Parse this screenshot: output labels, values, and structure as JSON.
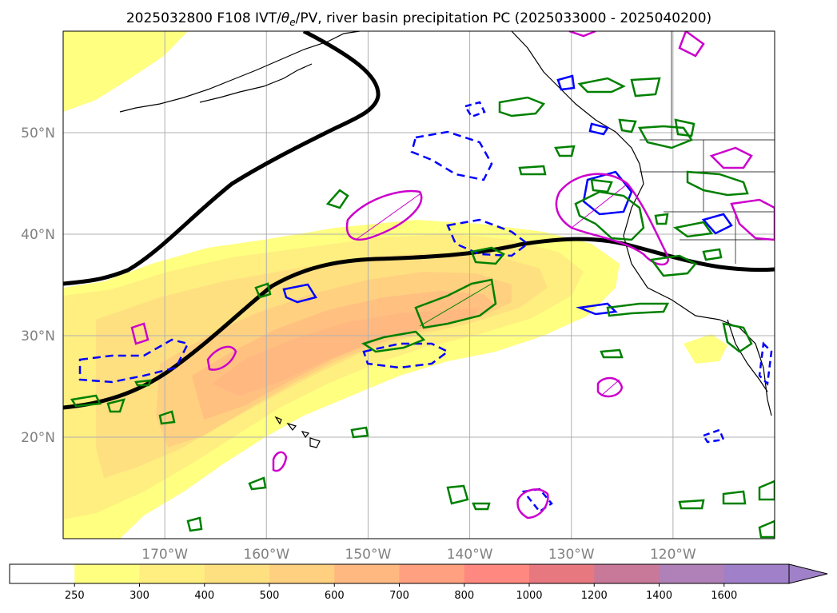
{
  "title": "2025032800 F108 IVT/θe/PV, river basin precipitation PC (2025033000 - 2025040200)",
  "title_parts": {
    "prefix": "2025032800 F108 IVT/",
    "theta": "θ",
    "theta_sub": "e",
    "suffix": "/PV, river basin precipitation PC (2025033000 - 2025040200)"
  },
  "map": {
    "projection": "equirectangular",
    "lon_range": [
      -180,
      -110
    ],
    "lat_range": [
      10,
      60
    ],
    "grid": true,
    "lat_ticks": [
      {
        "value": 20,
        "label": "20°N"
      },
      {
        "value": 30,
        "label": "30°N"
      },
      {
        "value": 40,
        "label": "40°N"
      },
      {
        "value": 50,
        "label": "50°N"
      }
    ],
    "lon_ticks": [
      {
        "value": -170,
        "label": "170°W"
      },
      {
        "value": -160,
        "label": "160°W"
      },
      {
        "value": -150,
        "label": "150°W"
      },
      {
        "value": -140,
        "label": "140°W"
      },
      {
        "value": -130,
        "label": "130°W"
      },
      {
        "value": -120,
        "label": "120°W"
      }
    ]
  },
  "colorbar": {
    "levels": [
      "250",
      "300",
      "400",
      "500",
      "600",
      "700",
      "800",
      "1000",
      "1200",
      "1400",
      "1600"
    ],
    "colors": [
      "#ffffff",
      "#ffff80",
      "#ffee80",
      "#ffe080",
      "#ffd080",
      "#ffb880",
      "#ffa080",
      "#ff8880",
      "#e87880",
      "#c87898",
      "#b080b8",
      "#a080c8"
    ],
    "extend": "max"
  },
  "colors": {
    "ivt_low": "#ffff80",
    "ivt_mid": "#ffd080",
    "ivt_high": "#ffa080",
    "theta_e_contour": "#000000",
    "pv_contour": "#0000ff",
    "precip_contour": "#008000",
    "pv_magenta": "#cc00cc",
    "coastline": "#000000",
    "grid": "#b0b0b0"
  }
}
